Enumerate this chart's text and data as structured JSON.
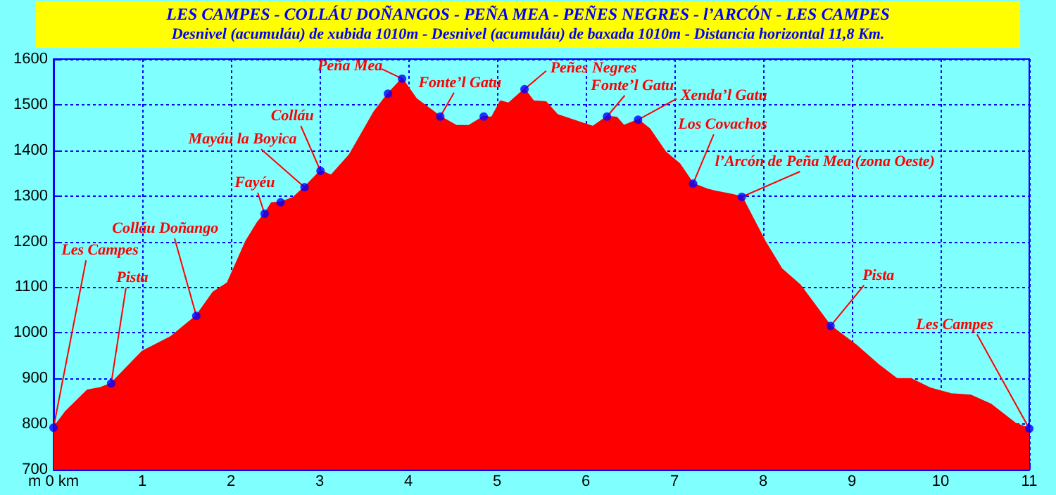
{
  "chart_data": {
    "type": "area",
    "title": "LES CAMPES - COLLÁU DOÑANGOS - PEÑA MEA - PEÑES NEGRES - l’ARCÓN - LES CAMPES",
    "subtitle": "Desnivel (acumuláu) de xubida 1010m - Desnivel (acumuláu) de baxada 1010m - Distancia horizontal 11,8 Km.",
    "xlim": [
      0,
      11
    ],
    "ylim": [
      700,
      1600
    ],
    "xticks": [
      {
        "value": 0,
        "label": "m 0 km"
      },
      1,
      2,
      3,
      4,
      5,
      6,
      7,
      8,
      9,
      10,
      11
    ],
    "yticks": [
      700,
      800,
      900,
      1000,
      1100,
      1200,
      1300,
      1400,
      1500,
      1600
    ],
    "grid": true,
    "series": [
      {
        "color": "#ff0000",
        "marker": "none",
        "x": [
          0,
          0.14,
          0.38,
          0.52,
          0.65,
          1.0,
          1.32,
          1.61,
          1.8,
          1.96,
          2.17,
          2.3,
          2.38,
          2.46,
          2.56,
          2.7,
          2.83,
          3.01,
          3.13,
          3.34,
          3.61,
          3.77,
          3.93,
          4.09,
          4.36,
          4.54,
          4.68,
          4.85,
          4.94,
          5.04,
          5.13,
          5.31,
          5.41,
          5.55,
          5.68,
          5.97,
          6.08,
          6.24,
          6.35,
          6.43,
          6.59,
          6.72,
          6.9,
          7.06,
          7.21,
          7.38,
          7.49,
          7.65,
          7.76,
          8.02,
          8.21,
          8.42,
          8.76,
          9.06,
          9.3,
          9.51,
          9.67,
          9.88,
          10.12,
          10.34,
          10.57,
          10.84,
          11
        ],
        "values": [
          792,
          828,
          874,
          879,
          889,
          959,
          991,
          1037,
          1089,
          1109,
          1201,
          1242,
          1261,
          1285,
          1286,
          1296,
          1319,
          1355,
          1345,
          1391,
          1483,
          1524,
          1557,
          1513,
          1474,
          1454,
          1454,
          1474,
          1472,
          1508,
          1503,
          1534,
          1508,
          1506,
          1478,
          1459,
          1452,
          1474,
          1472,
          1454,
          1467,
          1447,
          1396,
          1370,
          1327,
          1314,
          1309,
          1303,
          1298,
          1201,
          1140,
          1104,
          1015,
          971,
          930,
          899,
          899,
          879,
          866,
          863,
          843,
          802,
          790
        ]
      },
      {
        "type": "scatter",
        "color": "#0000ff",
        "marker": "circle",
        "x": [
          0,
          0.65,
          1.61,
          2.38,
          2.56,
          2.83,
          3.01,
          3.77,
          3.93,
          4.36,
          4.85,
          5.31,
          6.24,
          6.59,
          7.21,
          7.76,
          8.76,
          11
        ],
        "values": [
          792,
          889,
          1037,
          1261,
          1286,
          1319,
          1355,
          1524,
          1557,
          1474,
          1474,
          1534,
          1474,
          1467,
          1327,
          1298,
          1015,
          790
        ]
      }
    ],
    "annotations": [
      {
        "text": "Les Campes",
        "x": 0,
        "y": 792
      },
      {
        "text": "Pista",
        "x": 0.65,
        "y": 889
      },
      {
        "text": "Colláu Doñango",
        "x": 1.61,
        "y": 1037
      },
      {
        "text": "Fayéu",
        "x": 2.38,
        "y": 1261
      },
      {
        "text": "Mayáu la Boyica",
        "x": 2.83,
        "y": 1319
      },
      {
        "text": "Colláu",
        "x": 3.01,
        "y": 1355
      },
      {
        "text": "Peña Mea",
        "x": 3.93,
        "y": 1557
      },
      {
        "text": "Fonte’l Gatu",
        "x": 4.36,
        "y": 1474
      },
      {
        "text": "Peñes Negres",
        "x": 5.31,
        "y": 1534
      },
      {
        "text": "Fonte’l Gatu",
        "x": 6.24,
        "y": 1474
      },
      {
        "text": "Xenda’l Gatu",
        "x": 6.59,
        "y": 1467
      },
      {
        "text": "Los Covachos",
        "x": 7.21,
        "y": 1327
      },
      {
        "text": "l’Arcón de Peña Mea (zona Oeste)",
        "x": 7.76,
        "y": 1298
      },
      {
        "text": "Pista",
        "x": 8.76,
        "y": 1015
      },
      {
        "text": "Les Campes",
        "x": 11,
        "y": 790
      }
    ]
  }
}
